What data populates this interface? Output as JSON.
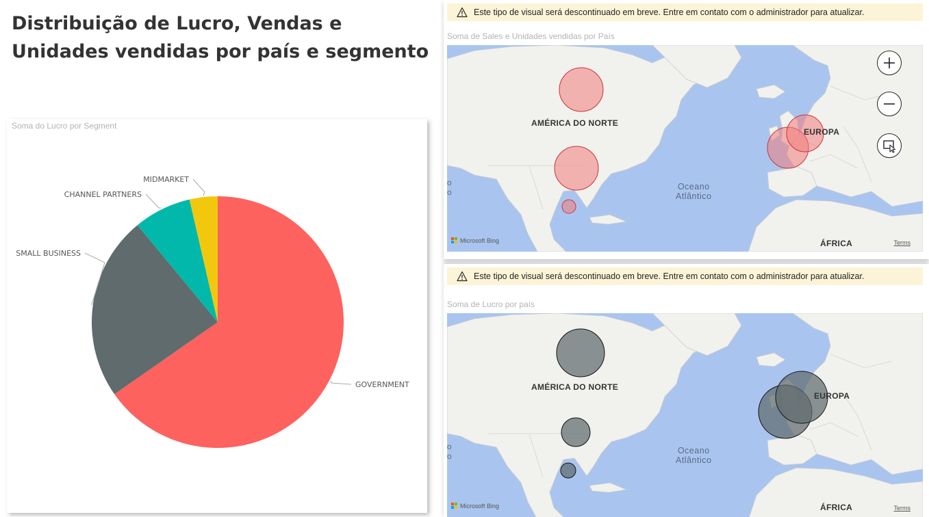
{
  "page": {
    "title": "Distribuição de Lucro, Vendas e Unidades vendidas por país e segmento"
  },
  "pie_card": {
    "title": "Soma do Lucro por Segment"
  },
  "chart_data": {
    "type": "pie",
    "title": "Soma do Lucro por Segment",
    "slices": [
      {
        "label": "GOVERNMENT",
        "value": 0.653,
        "color": "#fd625e"
      },
      {
        "label": "SMALL BUSINESS",
        "value": 0.237,
        "color": "#5f6b6d"
      },
      {
        "label": "CHANNEL PARTNERS",
        "value": 0.074,
        "color": "#01b8aa"
      },
      {
        "label": "MIDMARKET",
        "value": 0.036,
        "color": "#f2c80f"
      }
    ]
  },
  "maps": [
    {
      "warning": "Este tipo de visual será descontinuado em breve. Entre em contato com o administrador para atualizar.",
      "title": "Soma de Sales e Unidades vendidas por País",
      "bubble_fill": "#f07c7c",
      "bubble_stroke": "#cc3333",
      "labels": {
        "north_america": "AMÉRICA DO NORTE",
        "europe": "EUROPA",
        "africa": "ÁFRICA",
        "ocean_line1": "Oceano",
        "ocean_line2": "Atlântico",
        "edge_line1": "o",
        "edge_line2": "o"
      },
      "attribution": "Microsoft Bing",
      "terms": "Terms",
      "controls": [
        "zoom-in-icon",
        "zoom-out-icon",
        "select-region-icon"
      ]
    },
    {
      "warning": "Este tipo de visual será descontinuado em breve. Entre em contato com o administrador para atualizar.",
      "title": "Soma de Lucro por país",
      "bubble_fill": "#5f6b6d",
      "bubble_stroke": "#111111",
      "labels": {
        "north_america": "AMÉRICA DO NORTE",
        "europe": "EUROPA",
        "africa": "ÁFRICA",
        "ocean_line1": "Oceano",
        "ocean_line2": "Atlântico",
        "edge_line1": "o",
        "edge_line2": "o"
      },
      "attribution": "Microsoft Bing",
      "terms": "Terms"
    }
  ]
}
